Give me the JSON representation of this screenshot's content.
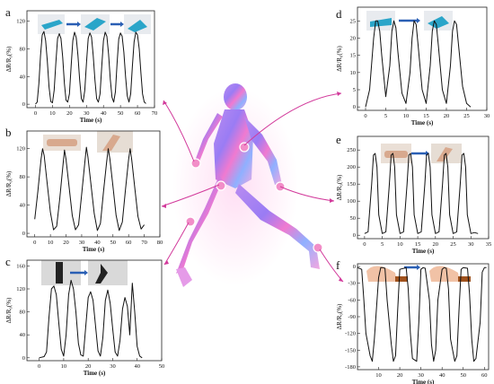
{
  "chart_data": [
    {
      "panel_label": "a",
      "type": "line",
      "xlabel": "Time (s)",
      "ylabel": "ΔR/R₀(%)",
      "xlim": [
        -5,
        70
      ],
      "xticks": [
        0,
        10,
        20,
        30,
        40,
        50,
        60,
        70
      ],
      "ylim": [
        -5,
        135
      ],
      "yticks": [
        0,
        40,
        80,
        120
      ],
      "series": [
        {
          "x": [
            0,
            1,
            2,
            3,
            4,
            5,
            6,
            7,
            8,
            9,
            10,
            11,
            12,
            13,
            14,
            15,
            16,
            17,
            18,
            19,
            20,
            21,
            22,
            23,
            24,
            25,
            26,
            27,
            28,
            29,
            30,
            31,
            32,
            33,
            34,
            35,
            36,
            37,
            38,
            39,
            40,
            41,
            42,
            43,
            44,
            45,
            46,
            47,
            48,
            49,
            50,
            51,
            52,
            53,
            54,
            55,
            56,
            57,
            58,
            59,
            60,
            61,
            62,
            63,
            64,
            65
          ],
          "y": [
            0,
            3,
            30,
            70,
            100,
            105,
            92,
            62,
            25,
            4,
            2,
            20,
            60,
            95,
            102,
            95,
            68,
            30,
            6,
            3,
            15,
            55,
            92,
            104,
            96,
            70,
            35,
            8,
            3,
            20,
            60,
            95,
            103,
            97,
            70,
            35,
            8,
            3,
            15,
            55,
            92,
            104,
            98,
            72,
            36,
            10,
            3,
            18,
            58,
            94,
            103,
            98,
            75,
            40,
            12,
            3,
            15,
            55,
            90,
            104,
            100,
            80,
            45,
            15,
            3,
            1
          ]
        }
      ]
    },
    {
      "panel_label": "b",
      "type": "line",
      "xlabel": "Time (s)",
      "ylabel": "ΔR/R₀(%)",
      "xlim": [
        -5,
        80
      ],
      "xticks": [
        0,
        10,
        20,
        30,
        40,
        50,
        60,
        70,
        80
      ],
      "ylim": [
        -5,
        145
      ],
      "yticks": [
        0,
        40,
        80,
        120
      ],
      "series": [
        {
          "x": [
            0,
            2,
            4,
            5,
            6,
            8,
            10,
            12,
            14,
            16,
            18,
            19,
            20,
            22,
            24,
            26,
            28,
            30,
            32,
            33,
            34,
            36,
            38,
            40,
            42,
            44,
            46,
            47,
            48,
            50,
            52,
            54,
            56,
            58,
            60,
            61,
            62,
            64,
            66,
            68,
            70
          ],
          "y": [
            20,
            60,
            105,
            120,
            110,
            70,
            30,
            5,
            10,
            50,
            95,
            118,
            105,
            65,
            25,
            5,
            12,
            55,
            100,
            122,
            108,
            68,
            28,
            4,
            14,
            60,
            102,
            120,
            106,
            66,
            26,
            4,
            16,
            62,
            105,
            120,
            104,
            64,
            24,
            6,
            12
          ]
        }
      ]
    },
    {
      "panel_label": "c",
      "type": "line",
      "xlabel": "Time (s)",
      "ylabel": "ΔR/R₀(%)",
      "xlim": [
        -5,
        50
      ],
      "xticks": [
        0,
        10,
        20,
        30,
        40,
        50
      ],
      "ylim": [
        -5,
        170
      ],
      "yticks": [
        0,
        40,
        80,
        120,
        160
      ],
      "series": [
        {
          "x": [
            0,
            2,
            3,
            4,
            5,
            6,
            7,
            8,
            9,
            10,
            11,
            12,
            13,
            14,
            15,
            16,
            17,
            18,
            19,
            20,
            21,
            22,
            23,
            24,
            25,
            26,
            27,
            28,
            29,
            30,
            31,
            32,
            33,
            34,
            35,
            36,
            37,
            38,
            39,
            40,
            41,
            42
          ],
          "y": [
            0,
            2,
            10,
            70,
            120,
            125,
            110,
            60,
            15,
            3,
            40,
            110,
            135,
            120,
            80,
            25,
            5,
            3,
            55,
            105,
            115,
            100,
            55,
            12,
            3,
            35,
            100,
            118,
            95,
            50,
            10,
            3,
            30,
            85,
            105,
            90,
            40,
            130,
            80,
            20,
            3,
            0
          ]
        }
      ]
    },
    {
      "panel_label": "d",
      "type": "line",
      "xlabel": "Time (s)",
      "ylabel": "ΔR/R₀(%)",
      "xlim": [
        -2,
        30
      ],
      "xticks": [
        0,
        5,
        10,
        15,
        20,
        25,
        30
      ],
      "ylim": [
        -1,
        29
      ],
      "yticks": [
        0,
        5,
        10,
        15,
        20,
        25
      ],
      "series": [
        {
          "x": [
            0,
            1,
            2,
            2.5,
            3,
            3.5,
            4,
            5,
            6,
            6.5,
            7,
            7.5,
            8,
            9,
            10,
            11,
            11.5,
            12,
            12.5,
            13,
            14,
            15,
            16,
            16.5,
            17,
            17.5,
            18,
            19,
            20,
            21,
            21.5,
            22,
            22.5,
            23,
            24,
            25,
            26
          ],
          "y": [
            0,
            5,
            20,
            25,
            25,
            22,
            15,
            3,
            12,
            22,
            25,
            23,
            16,
            4,
            1,
            10,
            20,
            25,
            24,
            18,
            5,
            1,
            12,
            22,
            25,
            24,
            18,
            5,
            1,
            12,
            22,
            25,
            24,
            18,
            6,
            1,
            0
          ]
        }
      ]
    },
    {
      "panel_label": "e",
      "type": "line",
      "xlabel": "Time (s)",
      "ylabel": "ΔR/R₀(%)",
      "xlim": [
        -2,
        35
      ],
      "xticks": [
        0,
        5,
        10,
        15,
        20,
        25,
        30,
        35
      ],
      "ylim": [
        -10,
        290
      ],
      "yticks": [
        0,
        50,
        100,
        150,
        200,
        250
      ],
      "series": [
        {
          "x": [
            0,
            1,
            2,
            2.5,
            3,
            3.5,
            4,
            5,
            6,
            7,
            7.5,
            8,
            8.5,
            9,
            10,
            11,
            12,
            12.5,
            13,
            13.5,
            14,
            15,
            16,
            17,
            17.5,
            18,
            18.5,
            19,
            20,
            21,
            22,
            22.5,
            23,
            23.5,
            24,
            25,
            26,
            27,
            27.5,
            28,
            28.5,
            29,
            30,
            31,
            32
          ],
          "y": [
            5,
            10,
            150,
            235,
            240,
            200,
            60,
            5,
            10,
            150,
            235,
            240,
            200,
            60,
            5,
            10,
            150,
            235,
            240,
            200,
            60,
            5,
            10,
            150,
            235,
            240,
            200,
            60,
            5,
            10,
            150,
            235,
            240,
            200,
            60,
            5,
            10,
            150,
            235,
            240,
            200,
            60,
            5,
            8,
            5
          ]
        }
      ]
    },
    {
      "panel_label": "f",
      "type": "line",
      "xlabel": "Time (s)",
      "ylabel": "ΔR/R₀(%)",
      "xlim": [
        0,
        62
      ],
      "xticks": [
        10,
        20,
        30,
        40,
        50,
        60
      ],
      "ylim": [
        -185,
        5
      ],
      "yticks": [
        0,
        -30,
        -60,
        -90,
        -120,
        -150,
        -180
      ],
      "series": [
        {
          "x": [
            0,
            2,
            3,
            4,
            6,
            7,
            8,
            10,
            11,
            12,
            13,
            14,
            16,
            17,
            18,
            19,
            20,
            22,
            23,
            24,
            25,
            26,
            28,
            29,
            30,
            31,
            32,
            34,
            35,
            36,
            37,
            38,
            40,
            41,
            42,
            43,
            44,
            46,
            47,
            48,
            49,
            50,
            52,
            53,
            54,
            55,
            56,
            58,
            59,
            60,
            61
          ],
          "y": [
            -2,
            -5,
            -60,
            -120,
            -160,
            -170,
            -130,
            -20,
            -2,
            -2,
            -3,
            -60,
            -140,
            -170,
            -160,
            -80,
            -5,
            -3,
            -2,
            -40,
            -120,
            -165,
            -170,
            -100,
            -5,
            -2,
            -3,
            -60,
            -140,
            -170,
            -150,
            -60,
            -5,
            -2,
            -3,
            -40,
            -130,
            -170,
            -160,
            -80,
            -5,
            -2,
            -3,
            -50,
            -130,
            -170,
            -165,
            -100,
            -10,
            -2,
            -2
          ]
        }
      ]
    }
  ]
}
